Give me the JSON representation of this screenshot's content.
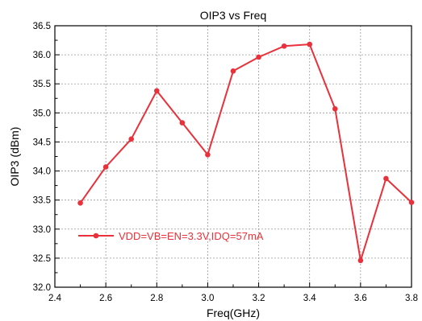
{
  "chart_data": {
    "type": "line",
    "title": "OIP3 vs Freq",
    "xlabel": "Freq(GHz)",
    "ylabel": "OIP3 (dBm)",
    "xlim": [
      2.4,
      3.8
    ],
    "ylim": [
      32.0,
      36.5
    ],
    "x_ticks": [
      "2.4",
      "2.6",
      "2.8",
      "3.0",
      "3.2",
      "3.4",
      "3.6",
      "3.8"
    ],
    "y_ticks": [
      "32.0",
      "32.5",
      "33.0",
      "33.5",
      "34.0",
      "34.5",
      "35.0",
      "35.5",
      "36.0",
      "36.5"
    ],
    "grid": true,
    "legend_position": "lower-left",
    "series": [
      {
        "name": "VDD=VB=EN=3.3V,IDQ=57mA",
        "color": "#e8313a",
        "x": [
          2.5,
          2.6,
          2.7,
          2.8,
          2.9,
          3.0,
          3.1,
          3.2,
          3.3,
          3.4,
          3.5,
          3.6,
          3.7,
          3.8
        ],
        "y": [
          33.45,
          34.07,
          34.55,
          35.38,
          34.83,
          34.28,
          35.72,
          35.96,
          36.15,
          36.18,
          35.07,
          32.46,
          33.87,
          33.46
        ]
      }
    ]
  }
}
